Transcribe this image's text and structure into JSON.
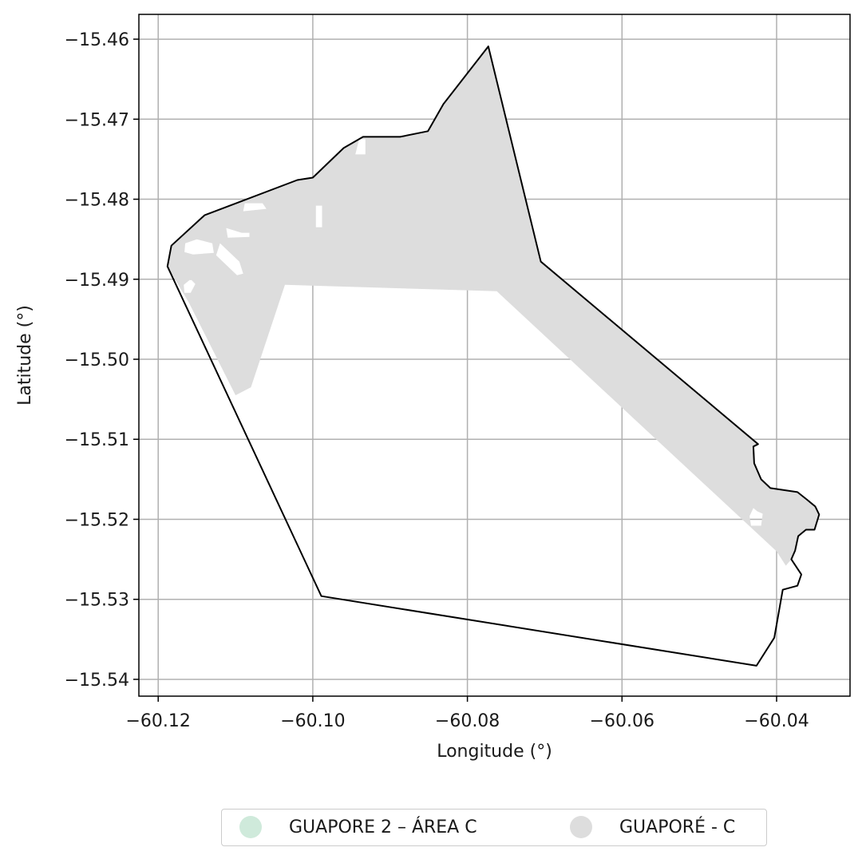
{
  "chart_data": {
    "type": "map",
    "xlabel": "Longitude (°)",
    "ylabel": "Latitude (°)",
    "xlim": [
      -60.1225,
      -60.0305
    ],
    "ylim": [
      -15.5421,
      -15.4569
    ],
    "grid": true,
    "x_ticks": [
      {
        "value": -60.12,
        "label": "−60.12"
      },
      {
        "value": -60.1,
        "label": "−60.10"
      },
      {
        "value": -60.08,
        "label": "−60.08"
      },
      {
        "value": -60.06,
        "label": "−60.06"
      },
      {
        "value": -60.04,
        "label": "−60.04"
      }
    ],
    "y_ticks": [
      {
        "value": -15.46,
        "label": "−15.46"
      },
      {
        "value": -15.47,
        "label": "−15.47"
      },
      {
        "value": -15.48,
        "label": "−15.48"
      },
      {
        "value": -15.49,
        "label": "−15.49"
      },
      {
        "value": -15.5,
        "label": "−15.50"
      },
      {
        "value": -15.51,
        "label": "−15.51"
      },
      {
        "value": -15.52,
        "label": "−15.52"
      },
      {
        "value": -15.53,
        "label": "−15.53"
      },
      {
        "value": -15.54,
        "label": "−15.54"
      }
    ],
    "legend_placement": "bottom-center",
    "series": [
      {
        "name": "GUAPORE 2 – ÁREA C",
        "color": "#cfeadb",
        "role": "boundary outline",
        "coords": [
          [
            -60.1183,
            -15.4858
          ],
          [
            -60.114,
            -15.482
          ],
          [
            -60.102,
            -15.4776
          ],
          [
            -60.1,
            -15.4773
          ],
          [
            -60.096,
            -15.4736
          ],
          [
            -60.0935,
            -15.4722
          ],
          [
            -60.0887,
            -15.4722
          ],
          [
            -60.0851,
            -15.4715
          ],
          [
            -60.0831,
            -15.4681
          ],
          [
            -60.0773,
            -15.4609
          ],
          [
            -60.0705,
            -15.4878
          ],
          [
            -60.0424,
            -15.5106
          ],
          [
            -60.043,
            -15.5109
          ],
          [
            -60.0429,
            -15.513
          ],
          [
            -60.042,
            -15.515
          ],
          [
            -60.0408,
            -15.5161
          ],
          [
            -60.0373,
            -15.5166
          ],
          [
            -60.036,
            -15.5176
          ],
          [
            -60.035,
            -15.5184
          ],
          [
            -60.0345,
            -15.5194
          ],
          [
            -60.0351,
            -15.5213
          ],
          [
            -60.0362,
            -15.5213
          ],
          [
            -60.0372,
            -15.5221
          ],
          [
            -60.0376,
            -15.5239
          ],
          [
            -60.0381,
            -15.525
          ],
          [
            -60.0368,
            -15.5269
          ],
          [
            -60.0373,
            -15.5283
          ],
          [
            -60.0392,
            -15.5288
          ],
          [
            -60.0403,
            -15.5348
          ],
          [
            -60.0426,
            -15.5383
          ],
          [
            -60.0989,
            -15.5296
          ],
          [
            -60.1188,
            -15.4884
          ],
          [
            -60.1183,
            -15.4858
          ]
        ]
      },
      {
        "name": "GUAPORÉ - C",
        "color": "#dddddd",
        "role": "filled area",
        "coords": [
          [
            -60.1183,
            -15.4858
          ],
          [
            -60.114,
            -15.482
          ],
          [
            -60.102,
            -15.4776
          ],
          [
            -60.1,
            -15.4773
          ],
          [
            -60.096,
            -15.4736
          ],
          [
            -60.0935,
            -15.4722
          ],
          [
            -60.0887,
            -15.4722
          ],
          [
            -60.0851,
            -15.4715
          ],
          [
            -60.0831,
            -15.4681
          ],
          [
            -60.0773,
            -15.4609
          ],
          [
            -60.0705,
            -15.4878
          ],
          [
            -60.0424,
            -15.5106
          ],
          [
            -60.043,
            -15.5109
          ],
          [
            -60.0429,
            -15.513
          ],
          [
            -60.042,
            -15.515
          ],
          [
            -60.0408,
            -15.5161
          ],
          [
            -60.0373,
            -15.5166
          ],
          [
            -60.036,
            -15.5176
          ],
          [
            -60.035,
            -15.5184
          ],
          [
            -60.0345,
            -15.5194
          ],
          [
            -60.0351,
            -15.5213
          ],
          [
            -60.0362,
            -15.5213
          ],
          [
            -60.0372,
            -15.5221
          ],
          [
            -60.0376,
            -15.5239
          ],
          [
            -60.0381,
            -15.525
          ],
          [
            -60.0388,
            -15.5258
          ],
          [
            -60.04,
            -15.524
          ],
          [
            -60.0762,
            -15.4915
          ],
          [
            -60.1036,
            -15.4907
          ],
          [
            -60.108,
            -15.5035
          ],
          [
            -60.11,
            -15.5045
          ],
          [
            -60.116,
            -15.493
          ],
          [
            -60.1188,
            -15.4884
          ],
          [
            -60.1183,
            -15.4858
          ]
        ],
        "gaps": [
          [
            [
              -60.1165,
              -15.4855
            ],
            [
              -60.115,
              -15.485
            ],
            [
              -60.113,
              -15.4855
            ],
            [
              -60.1128,
              -15.4867
            ],
            [
              -60.1155,
              -15.4869
            ],
            [
              -60.1166,
              -15.4866
            ]
          ],
          [
            [
              -60.112,
              -15.4855
            ],
            [
              -60.1095,
              -15.4878
            ],
            [
              -60.109,
              -15.4893
            ],
            [
              -60.1098,
              -15.4895
            ],
            [
              -60.1125,
              -15.487
            ]
          ],
          [
            [
              -60.1112,
              -15.4836
            ],
            [
              -60.1092,
              -15.4842
            ],
            [
              -60.1082,
              -15.4842
            ],
            [
              -60.1082,
              -15.4847
            ],
            [
              -60.111,
              -15.4848
            ]
          ],
          [
            [
              -60.1088,
              -15.4805
            ],
            [
              -60.1065,
              -15.4805
            ],
            [
              -60.106,
              -15.4812
            ],
            [
              -60.109,
              -15.4815
            ]
          ],
          [
            [
              -60.0996,
              -15.4808
            ],
            [
              -60.0988,
              -15.4808
            ],
            [
              -60.0988,
              -15.4835
            ],
            [
              -60.0996,
              -15.4835
            ]
          ],
          [
            [
              -60.094,
              -15.4725
            ],
            [
              -60.0932,
              -15.4725
            ],
            [
              -60.0932,
              -15.4744
            ],
            [
              -60.0945,
              -15.4744
            ]
          ],
          [
            [
              -60.1167,
              -15.4907
            ],
            [
              -60.1158,
              -15.49
            ],
            [
              -60.1152,
              -15.4906
            ],
            [
              -60.1158,
              -15.4917
            ],
            [
              -60.1166,
              -15.4917
            ]
          ],
          [
            [
              -60.043,
              -15.5186
            ],
            [
              -60.0425,
              -15.519
            ],
            [
              -60.0418,
              -15.5193
            ],
            [
              -60.042,
              -15.5208
            ],
            [
              -60.0433,
              -15.5208
            ],
            [
              -60.0435,
              -15.5196
            ]
          ]
        ]
      }
    ]
  },
  "legend": {
    "items": [
      {
        "label": "GUAPORE 2 – ÁREA C",
        "color": "#cfeadb"
      },
      {
        "label": "GUAPORÉ - C",
        "color": "#dddddd"
      }
    ]
  }
}
